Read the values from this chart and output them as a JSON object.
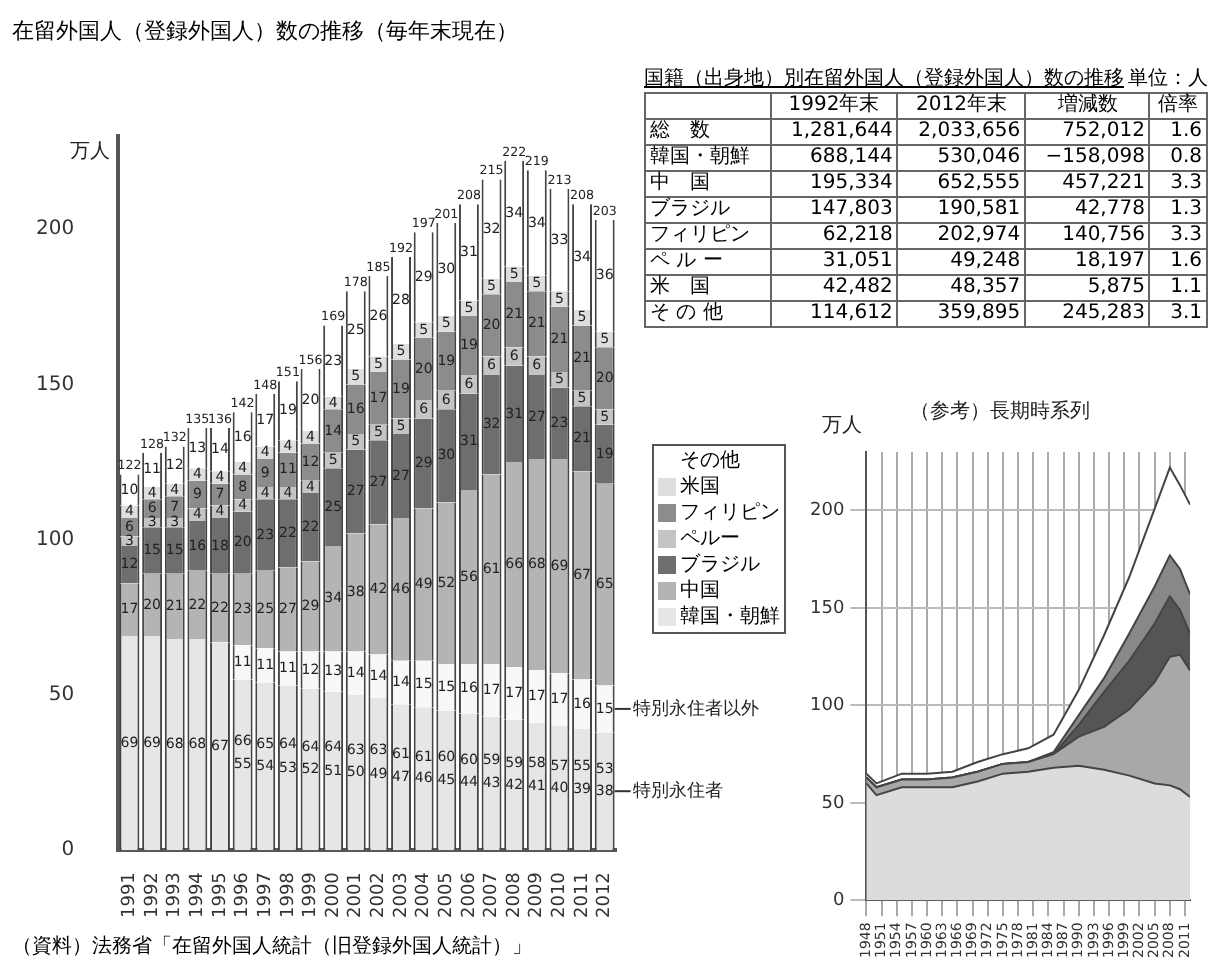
{
  "chart_data": [
    {
      "type": "bar",
      "title": "在留外国人（登録外国人）数の推移（毎年末現在）",
      "ylabel": "万人",
      "stacked": true,
      "data_labels": true,
      "legend": "right",
      "grid": false,
      "categories": [
        "1991",
        "1992",
        "1993",
        "1994",
        "1995",
        "1996",
        "1997",
        "1998",
        "1999",
        "2000",
        "2001",
        "2002",
        "2003",
        "2004",
        "2005",
        "2006",
        "2007",
        "2008",
        "2009",
        "2010",
        "2011",
        "2012"
      ],
      "ylim": [
        0,
        230
      ],
      "yticks": [
        0,
        50,
        100,
        150,
        200
      ],
      "series": [
        {
          "name": "韓国・朝鮮",
          "color": "#e6e6e6",
          "values": [
            69,
            69,
            68,
            68,
            67,
            55,
            54,
            53,
            52,
            51,
            50,
            49,
            47,
            46,
            45,
            44,
            43,
            42,
            41,
            40,
            39,
            38
          ]
        },
        {
          "color": "#f8f8f8",
          "values": [
            null,
            null,
            null,
            null,
            null,
            11,
            11,
            11,
            12,
            13,
            14,
            14,
            14,
            15,
            15,
            16,
            17,
            17,
            17,
            17,
            16,
            15
          ]
        },
        {
          "name": "中国",
          "color": "#b4b4b4",
          "values": [
            17,
            20,
            21,
            22,
            22,
            23,
            25,
            27,
            29,
            34,
            38,
            42,
            46,
            49,
            52,
            56,
            61,
            66,
            68,
            69,
            67,
            65
          ]
        },
        {
          "name": "ブラジル",
          "color": "#6e6e6e",
          "values": [
            12,
            15,
            15,
            16,
            18,
            20,
            23,
            22,
            22,
            25,
            27,
            27,
            27,
            29,
            30,
            31,
            32,
            31,
            27,
            23,
            21,
            19
          ]
        },
        {
          "name": "ペルー",
          "color": "#c4c4c4",
          "values": [
            3,
            3,
            3,
            4,
            4,
            4,
            4,
            4,
            4,
            5,
            5,
            5,
            5,
            6,
            6,
            6,
            6,
            6,
            6,
            5,
            5,
            5
          ]
        },
        {
          "name": "フィリピン",
          "color": "#8c8c8c",
          "values": [
            6,
            6,
            7,
            9,
            7,
            8,
            9,
            11,
            12,
            14,
            16,
            17,
            19,
            20,
            19,
            19,
            20,
            21,
            21,
            21,
            21,
            20
          ]
        },
        {
          "name": "米国",
          "color": "#dedede",
          "values": [
            4,
            4,
            4,
            4,
            4,
            4,
            4,
            4,
            4,
            4,
            5,
            5,
            5,
            5,
            5,
            5,
            5,
            5,
            5,
            5,
            5,
            5
          ]
        },
        {
          "name": "その他",
          "color": "#ffffff",
          "values": [
            10,
            11,
            12,
            13,
            14,
            16,
            17,
            19,
            20,
            23,
            25,
            26,
            28,
            29,
            30,
            31,
            32,
            34,
            34,
            33,
            34,
            36
          ]
        }
      ],
      "totals": [
        "122",
        "128",
        "132",
        "135",
        "136",
        "142",
        "148",
        "151",
        "156",
        "169",
        "178",
        "185",
        "192",
        "197",
        "201",
        "208",
        "215",
        "222",
        "219",
        "213",
        "208",
        "203"
      ],
      "annotations": [
        {
          "text": "66",
          "x": "1996",
          "y": 35
        },
        {
          "text": "65",
          "x": "1997",
          "y": 34
        },
        {
          "text": "64",
          "x": "1998",
          "y": 34
        },
        {
          "text": "64",
          "x": "1999",
          "y": 33
        },
        {
          "text": "64",
          "x": "2000",
          "y": 33
        },
        {
          "text": "63",
          "x": "2001",
          "y": 32
        },
        {
          "text": "63",
          "x": "2002",
          "y": 32
        },
        {
          "text": "61",
          "x": "2003",
          "y": 31
        },
        {
          "text": "61",
          "x": "2004",
          "y": 30
        },
        {
          "text": "60",
          "x": "2005",
          "y": 30
        },
        {
          "text": "60",
          "x": "2006",
          "y": 29
        },
        {
          "text": "59",
          "x": "2007",
          "y": 29
        },
        {
          "text": "59",
          "x": "2008",
          "y": 28
        },
        {
          "text": "58",
          "x": "2009",
          "y": 28
        },
        {
          "text": "57",
          "x": "2010",
          "y": 27
        },
        {
          "text": "55",
          "x": "2011",
          "y": 27
        },
        {
          "text": "53",
          "x": "2012",
          "y": 26
        },
        {
          "text": "特別永住者以外",
          "x": "2012",
          "y": 45.5
        },
        {
          "text": "特別永住者",
          "x": "2012",
          "y": 19
        },
        "（資料）法務省「在留外国人統計（旧登録外国人統計）」"
      ]
    },
    {
      "type": "other",
      "title": "国籍（出身地）別在留外国人（登録外国人）数の推移",
      "annotations": [
        "単位：人"
      ],
      "categories": [
        "1992年末",
        "2012年末",
        "増減数",
        "倍率"
      ],
      "y_categories": [
        "総　数",
        "韓国・朝鮮",
        "中　国",
        "ブラジル",
        "フィリピン",
        "ペ ル ー",
        "米　国",
        "そ の 他"
      ],
      "cell_labels": [
        [
          "1,281,644",
          "2,033,656",
          "752,012",
          "1.6"
        ],
        [
          "688,144",
          "530,046",
          "−158,098",
          "0.8"
        ],
        [
          "195,334",
          "652,555",
          "457,221",
          "3.3"
        ],
        [
          "147,803",
          "190,581",
          "42,778",
          "1.3"
        ],
        [
          "62,218",
          "202,974",
          "140,756",
          "3.3"
        ],
        [
          "31,051",
          "49,248",
          "18,197",
          "1.6"
        ],
        [
          "42,482",
          "48,357",
          "5,875",
          "1.1"
        ],
        [
          "114,612",
          "359,895",
          "245,283",
          "3.1"
        ]
      ]
    },
    {
      "type": "area",
      "title": "（参考）長期時系列",
      "ylabel": "万人",
      "stacked": true,
      "grid": true,
      "x": [
        1948,
        1950,
        1955,
        1960,
        1965,
        1970,
        1975,
        1980,
        1985,
        1990,
        1995,
        2000,
        2005,
        2008,
        2010,
        2012
      ],
      "xlim": [
        1948,
        2012
      ],
      "xticks": [
        1948,
        1951,
        1954,
        1957,
        1960,
        1963,
        1966,
        1969,
        1972,
        1975,
        1978,
        1981,
        1984,
        1987,
        1990,
        1993,
        1996,
        1999,
        2002,
        2005,
        2008,
        2011
      ],
      "ylim": [
        0,
        230
      ],
      "yticks": [
        0,
        50,
        100,
        150,
        200
      ],
      "series": [
        {
          "color": "#dcdcdc",
          "values": [
            60,
            54,
            58,
            58,
            58,
            61,
            65,
            66,
            68,
            69,
            67,
            64,
            60,
            59,
            57,
            53
          ]
        },
        {
          "color": "#a8a8a8",
          "values": [
            3,
            4,
            4,
            4,
            5,
            5,
            5,
            5,
            7,
            15,
            22,
            34,
            52,
            66,
            69,
            65
          ]
        },
        {
          "color": "#555555",
          "values": [
            0,
            0,
            0,
            0,
            0,
            0,
            0,
            0,
            0,
            6,
            18,
            25,
            30,
            31,
            23,
            19
          ]
        },
        {
          "color": "#888888",
          "values": [
            0,
            0,
            0,
            0,
            0,
            0,
            0,
            0,
            1,
            5,
            7,
            14,
            19,
            21,
            21,
            20
          ]
        },
        {
          "color": "#ffffff",
          "values": [
            2,
            2,
            3,
            3,
            3,
            5,
            5,
            7,
            9,
            13,
            22,
            29,
            40,
            45,
            43,
            46
          ]
        }
      ]
    }
  ]
}
